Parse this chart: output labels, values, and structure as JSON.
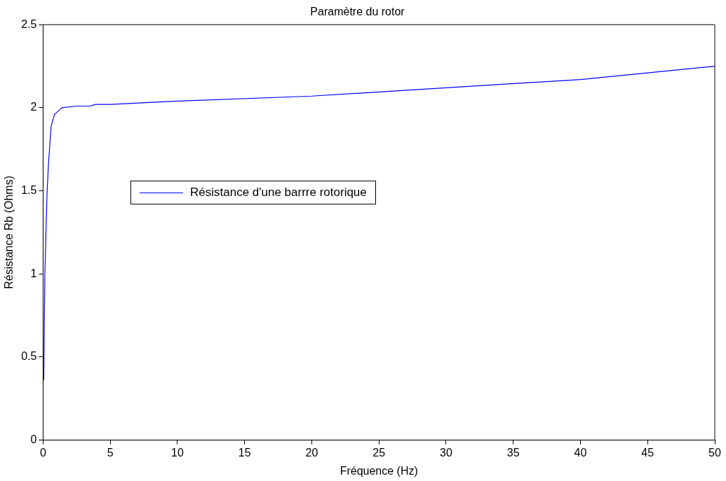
{
  "chart_data": {
    "type": "line",
    "title": "Paramètre du rotor",
    "xlabel": "Fréquence (Hz)",
    "ylabel": "Résistance Rb (Ohms)",
    "series": [
      {
        "name": "Résistance d'une barrre rotorique",
        "color": "#0000ff",
        "x": [
          0.05,
          0.13,
          0.3,
          0.4,
          0.6,
          0.85,
          1.4,
          2.5,
          3.5,
          3.9,
          5,
          10,
          20,
          30,
          40,
          50
        ],
        "values": [
          0.36,
          1.0,
          1.5,
          1.66,
          1.89,
          1.96,
          2.0,
          2.01,
          2.01,
          2.02,
          2.02,
          2.04,
          2.07,
          2.12,
          2.17,
          2.25
        ]
      }
    ],
    "xlim": [
      0,
      50
    ],
    "xticks": [
      0,
      5,
      10,
      15,
      20,
      25,
      30,
      35,
      40,
      45,
      50
    ],
    "ylim": [
      0,
      2.5
    ],
    "yticks": [
      0,
      0.5,
      1,
      1.5,
      2,
      2.5
    ],
    "legend": "top left",
    "grid": false,
    "marker": "none",
    "line_style": "solid"
  }
}
